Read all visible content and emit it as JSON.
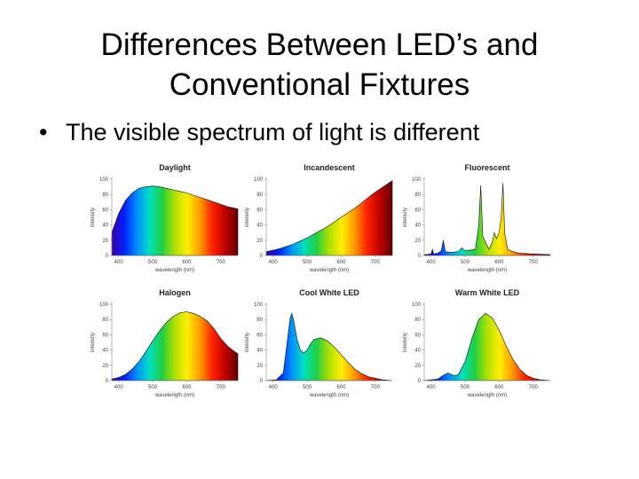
{
  "slide": {
    "title_line1": "Differences Between LED’s and",
    "title_line2": "Conventional Fixtures",
    "bullet_mark": "•",
    "bullet_text": "The visible spectrum of light is different"
  },
  "spectrum_colors": [
    "#3a00a8",
    "#0020ff",
    "#0090ff",
    "#00e0c0",
    "#20d040",
    "#b0e000",
    "#ffee00",
    "#ff9a00",
    "#ff2000",
    "#c00000",
    "#600000"
  ],
  "chart_data": [
    {
      "type": "area",
      "title": "Daylight",
      "xlabel": "wavelength (nm)",
      "ylabel": "intensity",
      "xlim": [
        380,
        750
      ],
      "ylim": [
        0,
        100
      ],
      "xticks": [
        400,
        500,
        600,
        700
      ],
      "yticks": [
        0,
        20,
        40,
        60,
        80,
        100
      ],
      "x": [
        380,
        400,
        420,
        440,
        460,
        480,
        500,
        520,
        540,
        560,
        580,
        600,
        620,
        640,
        660,
        680,
        700,
        720,
        740,
        750
      ],
      "y": [
        30,
        55,
        72,
        82,
        88,
        90,
        91,
        90,
        88,
        86,
        84,
        82,
        79,
        76,
        73,
        70,
        67,
        64,
        62,
        61
      ]
    },
    {
      "type": "area",
      "title": "Incandescent",
      "xlabel": "wavelength (nm)",
      "ylabel": "intensity",
      "xlim": [
        380,
        750
      ],
      "ylim": [
        0,
        100
      ],
      "xticks": [
        400,
        500,
        600,
        700
      ],
      "yticks": [
        0,
        20,
        40,
        60,
        80,
        100
      ],
      "x": [
        380,
        400,
        420,
        440,
        460,
        480,
        500,
        520,
        540,
        560,
        580,
        600,
        620,
        640,
        660,
        680,
        700,
        720,
        740,
        750
      ],
      "y": [
        5,
        7,
        9,
        12,
        15,
        19,
        23,
        28,
        33,
        38,
        44,
        50,
        56,
        62,
        69,
        76,
        83,
        89,
        95,
        98
      ]
    },
    {
      "type": "area",
      "title": "Fluorescent",
      "xlabel": "wavelength (nm)",
      "ylabel": "intensity",
      "xlim": [
        380,
        750
      ],
      "ylim": [
        0,
        100
      ],
      "xticks": [
        400,
        500,
        600,
        700
      ],
      "yticks": [
        0,
        20,
        40,
        60,
        80,
        100
      ],
      "x": [
        380,
        400,
        404,
        408,
        420,
        430,
        436,
        442,
        460,
        480,
        490,
        500,
        530,
        540,
        546,
        552,
        570,
        580,
        586,
        592,
        600,
        606,
        611,
        616,
        625,
        640,
        660,
        700,
        750
      ],
      "y": [
        1,
        2,
        8,
        2,
        3,
        6,
        20,
        5,
        4,
        5,
        10,
        6,
        8,
        40,
        92,
        25,
        8,
        18,
        30,
        22,
        30,
        50,
        95,
        30,
        8,
        5,
        3,
        2,
        1
      ]
    },
    {
      "type": "area",
      "title": "Halogen",
      "xlabel": "wavelength (nm)",
      "ylabel": "intensity",
      "xlim": [
        380,
        750
      ],
      "ylim": [
        0,
        100
      ],
      "xticks": [
        400,
        500,
        600,
        700
      ],
      "yticks": [
        0,
        20,
        40,
        60,
        80,
        100
      ],
      "x": [
        380,
        400,
        420,
        440,
        460,
        480,
        500,
        520,
        540,
        560,
        580,
        600,
        620,
        640,
        660,
        680,
        700,
        720,
        740,
        750
      ],
      "y": [
        2,
        4,
        8,
        15,
        25,
        38,
        52,
        65,
        76,
        84,
        89,
        90,
        88,
        84,
        78,
        68,
        55,
        45,
        38,
        35
      ]
    },
    {
      "type": "area",
      "title": "Cool White LED",
      "xlabel": "wavelength (nm)",
      "ylabel": "intensity",
      "xlim": [
        380,
        750
      ],
      "ylim": [
        0,
        100
      ],
      "xticks": [
        400,
        500,
        600,
        700
      ],
      "yticks": [
        0,
        20,
        40,
        60,
        80,
        100
      ],
      "x": [
        380,
        410,
        430,
        440,
        450,
        455,
        460,
        470,
        480,
        490,
        500,
        510,
        520,
        540,
        560,
        580,
        600,
        620,
        640,
        660,
        680,
        700,
        720,
        750
      ],
      "y": [
        0,
        1,
        10,
        45,
        82,
        88,
        80,
        55,
        40,
        36,
        40,
        48,
        54,
        56,
        52,
        44,
        34,
        24,
        15,
        9,
        5,
        3,
        1,
        0
      ]
    },
    {
      "type": "area",
      "title": "Warm White LED",
      "xlabel": "wavelength (nm)",
      "ylabel": "intensity",
      "xlim": [
        380,
        750
      ],
      "ylim": [
        0,
        100
      ],
      "xticks": [
        400,
        500,
        600,
        700
      ],
      "yticks": [
        0,
        20,
        40,
        60,
        80,
        100
      ],
      "x": [
        380,
        420,
        440,
        450,
        460,
        470,
        480,
        500,
        520,
        540,
        560,
        580,
        600,
        620,
        640,
        660,
        680,
        700,
        720,
        750
      ],
      "y": [
        0,
        2,
        8,
        10,
        8,
        6,
        8,
        25,
        55,
        80,
        88,
        82,
        66,
        46,
        28,
        15,
        7,
        3,
        1,
        0
      ]
    }
  ]
}
